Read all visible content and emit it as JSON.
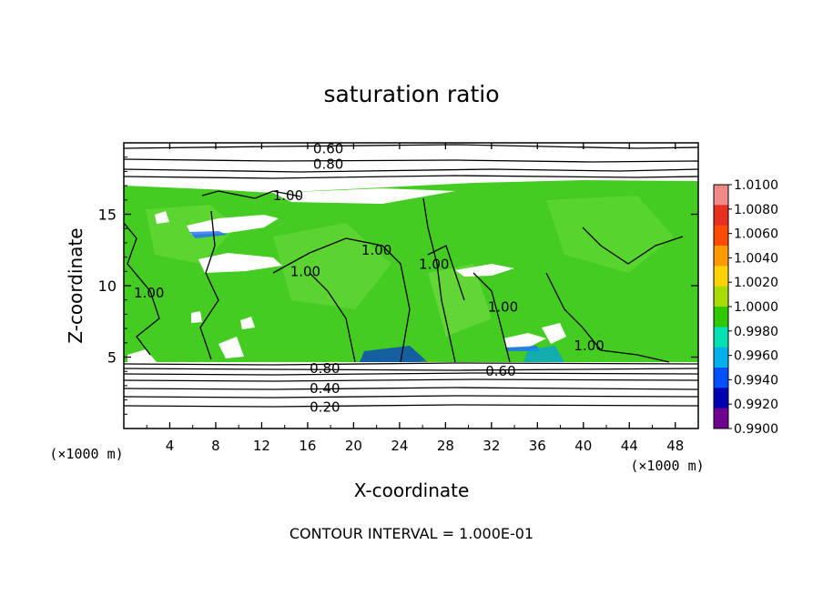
{
  "chart_data": {
    "type": "heatmap",
    "title": "saturation ratio",
    "xlabel": "X-coordinate",
    "ylabel": "Z-coordinate",
    "x_unit": "(×1000 m)",
    "y_unit": "(×1000 m)",
    "xlim": [
      0,
      50
    ],
    "ylim": [
      0,
      20
    ],
    "x_ticks": [
      4,
      8,
      12,
      16,
      20,
      24,
      28,
      32,
      36,
      40,
      44,
      48
    ],
    "y_ticks": [
      5,
      10,
      15
    ],
    "colorbar": {
      "levels": [
        "1.0100",
        "1.0080",
        "1.0060",
        "1.0040",
        "1.0020",
        "1.0000",
        "0.9980",
        "0.9960",
        "0.9940",
        "0.9920",
        "0.9900"
      ],
      "colors": [
        "#f08a8a",
        "#e83020",
        "#ff4a00",
        "#ff9a00",
        "#ffd200",
        "#a8dc00",
        "#30c800",
        "#00e0b0",
        "#00b0e8",
        "#0050ff",
        "#0000b0",
        "#700090"
      ]
    },
    "contour_labels": [
      {
        "text": "0.60",
        "x": 17.8,
        "z": 19.6
      },
      {
        "text": "0.80",
        "x": 17.8,
        "z": 18.5
      },
      {
        "text": "1.00",
        "x": 14.3,
        "z": 16.3
      },
      {
        "text": "1.00",
        "x": 22.0,
        "z": 12.5
      },
      {
        "text": "1.00",
        "x": 15.8,
        "z": 11.0
      },
      {
        "text": "1.00",
        "x": 2.2,
        "z": 9.5
      },
      {
        "text": "1.00",
        "x": 27.0,
        "z": 11.5
      },
      {
        "text": "1.00",
        "x": 33.0,
        "z": 8.5
      },
      {
        "text": "1.00",
        "x": 40.5,
        "z": 5.8
      },
      {
        "text": "0.80",
        "x": 17.5,
        "z": 4.2
      },
      {
        "text": "0.60",
        "x": 32.8,
        "z": 4.0
      },
      {
        "text": "0.40",
        "x": 17.5,
        "z": 2.8
      },
      {
        "text": "0.20",
        "x": 17.5,
        "z": 1.5
      }
    ],
    "footer": "CONTOUR INTERVAL = 1.000E-01"
  }
}
